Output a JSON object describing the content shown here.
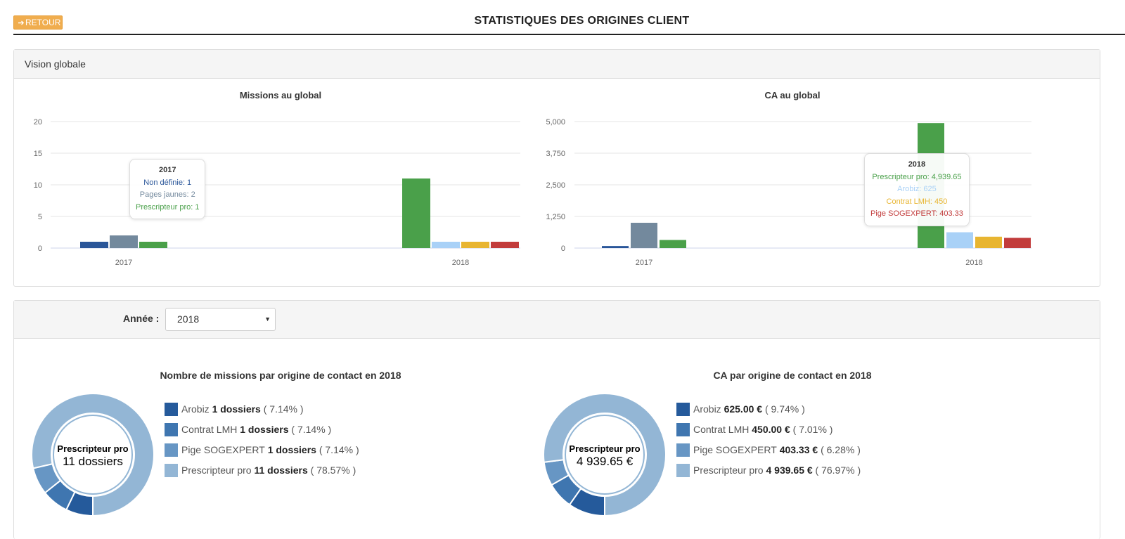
{
  "header": {
    "back_label": "RETOUR",
    "title": "STATISTIQUES DES ORIGINES CLIENT"
  },
  "colors": {
    "non_definie": "#2a5699",
    "pages_jaunes": "#73899d",
    "prescripteur": "#4aa04a",
    "arobiz": "#a9d1f7",
    "contrat_lmh": "#e8b531",
    "pige_sogexpert": "#c23c3c",
    "donut_dark": "#255a9b",
    "donut_mid": "#3f76b0",
    "donut_light": "#6796c4",
    "donut_pale": "#93b6d5"
  },
  "global_panel": {
    "heading": "Vision globale"
  },
  "chart_data": [
    {
      "type": "bar",
      "title": "Missions au global",
      "categories": [
        "2017",
        "2018"
      ],
      "ylim": [
        0,
        20
      ],
      "yticks": [
        "0",
        "5",
        "10",
        "15",
        "20"
      ],
      "series": [
        {
          "name": "Non définie",
          "color_key": "non_definie",
          "values": [
            1,
            0
          ]
        },
        {
          "name": "Pages jaunes",
          "color_key": "pages_jaunes",
          "values": [
            2,
            0
          ]
        },
        {
          "name": "Prescripteur pro",
          "color_key": "prescripteur",
          "values": [
            1,
            11
          ]
        },
        {
          "name": "Arobiz",
          "color_key": "arobiz",
          "values": [
            0,
            1
          ]
        },
        {
          "name": "Contrat LMH",
          "color_key": "contrat_lmh",
          "values": [
            0,
            1
          ]
        },
        {
          "name": "Pige SOGEXPERT",
          "color_key": "pige_sogexpert",
          "values": [
            0,
            1
          ]
        }
      ],
      "tooltip": {
        "header": "2017",
        "lines": [
          {
            "text": "Non définie: 1",
            "color_key": "non_definie"
          },
          {
            "text": "Pages jaunes: 2",
            "color_key": "pages_jaunes"
          },
          {
            "text": "Prescripteur pro: 1",
            "color_key": "prescripteur"
          }
        ]
      }
    },
    {
      "type": "bar",
      "title": "CA au global",
      "categories": [
        "2017",
        "2018"
      ],
      "ylim": [
        0,
        5000
      ],
      "yticks": [
        "0",
        "1,250",
        "2,500",
        "3,750",
        "5,000"
      ],
      "series": [
        {
          "name": "Non définie",
          "color_key": "non_definie",
          "values": [
            80,
            0
          ]
        },
        {
          "name": "Pages jaunes",
          "color_key": "pages_jaunes",
          "values": [
            1000,
            0
          ]
        },
        {
          "name": "Prescripteur pro",
          "color_key": "prescripteur",
          "values": [
            320,
            4939.65
          ]
        },
        {
          "name": "Arobiz",
          "color_key": "arobiz",
          "values": [
            0,
            625
          ]
        },
        {
          "name": "Contrat LMH",
          "color_key": "contrat_lmh",
          "values": [
            0,
            450
          ]
        },
        {
          "name": "Pige SOGEXPERT",
          "color_key": "pige_sogexpert",
          "values": [
            0,
            403.33
          ]
        }
      ],
      "tooltip": {
        "header": "2018",
        "lines": [
          {
            "text": "Prescripteur pro: 4,939.65",
            "color_key": "prescripteur"
          },
          {
            "text": "Arobiz: 625",
            "color_key": "arobiz"
          },
          {
            "text": "Contrat LMH: 450",
            "color_key": "contrat_lmh"
          },
          {
            "text": "Pige SOGEXPERT: 403.33",
            "color_key": "pige_sogexpert"
          }
        ]
      }
    },
    {
      "type": "pie",
      "title": "Nombre de missions par origine de contact en 2018",
      "center_title": "Prescripteur pro",
      "center_value": "11 dossiers",
      "slices": [
        {
          "label": "Arobiz",
          "value_text": "1 dossiers",
          "pct_text": "( 7.14% )",
          "pct": 7.14,
          "color_key": "donut_dark"
        },
        {
          "label": "Contrat LMH",
          "value_text": "1 dossiers",
          "pct_text": "( 7.14% )",
          "pct": 7.14,
          "color_key": "donut_mid"
        },
        {
          "label": "Pige SOGEXPERT",
          "value_text": "1 dossiers",
          "pct_text": "( 7.14% )",
          "pct": 7.14,
          "color_key": "donut_light"
        },
        {
          "label": "Prescripteur pro",
          "value_text": "11 dossiers",
          "pct_text": "( 78.57% )",
          "pct": 78.57,
          "color_key": "donut_pale"
        }
      ]
    },
    {
      "type": "pie",
      "title": "CA par origine de contact en 2018",
      "center_title": "Prescripteur pro",
      "center_value": "4 939.65 €",
      "slices": [
        {
          "label": "Arobiz",
          "value_text": "625.00 €",
          "pct_text": "( 9.74% )",
          "pct": 9.74,
          "color_key": "donut_dark"
        },
        {
          "label": "Contrat LMH",
          "value_text": "450.00 €",
          "pct_text": "( 7.01% )",
          "pct": 7.01,
          "color_key": "donut_mid"
        },
        {
          "label": "Pige SOGEXPERT",
          "value_text": "403.33 €",
          "pct_text": "( 6.28% )",
          "pct": 6.28,
          "color_key": "donut_light"
        },
        {
          "label": "Prescripteur pro",
          "value_text": "4 939.65 €",
          "pct_text": "( 76.97% )",
          "pct": 76.97,
          "color_key": "donut_pale"
        }
      ]
    }
  ],
  "filter": {
    "year_label": "Année :",
    "year_value": "2018"
  }
}
